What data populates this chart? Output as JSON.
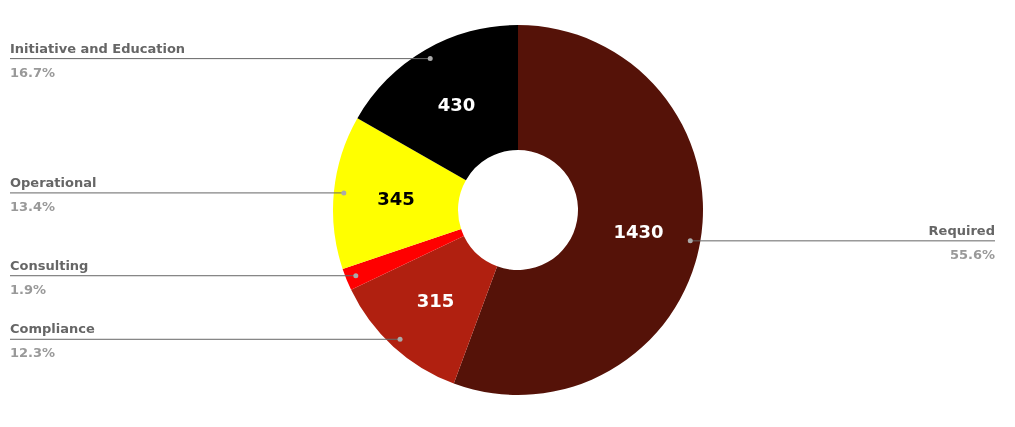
{
  "chart_data": {
    "type": "donut",
    "categories": [
      "Required",
      "Compliance",
      "Consulting",
      "Operational",
      "Initiative and Education"
    ],
    "values": [
      1430,
      315,
      50,
      345,
      430
    ],
    "colors": [
      "#551208",
      "#b02010",
      "#ff0000",
      "#ffff00",
      "#000000"
    ],
    "value_labels": [
      "1430",
      "315",
      null,
      "345",
      "430"
    ],
    "annotations": [
      "55.6%",
      "12.3%",
      "1.9%",
      "13.4%",
      "16.7%"
    ]
  }
}
